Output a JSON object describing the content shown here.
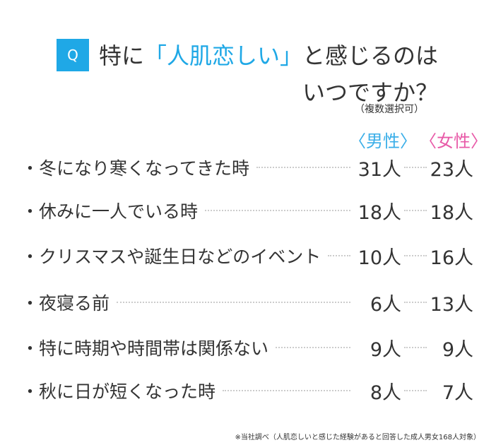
{
  "header": {
    "badge": "Q",
    "title_pre": "特に",
    "title_highlight": "「人肌恋しい」",
    "title_post": "と感じるのは",
    "title_line2": "いつですか？",
    "note": "（複数選択可）"
  },
  "table": {
    "columns": [
      "〈男性〉",
      "〈女性〉"
    ],
    "rows": [
      [
        "・冬になり寒くなってきた時",
        "31人",
        "23人"
      ],
      [
        "・休みに一人でいる時",
        "18人",
        "18人"
      ],
      [
        "・クリスマスや誕生日などのイベント",
        "10人",
        "16人"
      ],
      [
        "・夜寝る前",
        "6人",
        "13人"
      ],
      [
        "・特に時期や時間帯は関係ない",
        "9人",
        "9人"
      ],
      [
        "・秋に日が短くなった時",
        "8人",
        "7人"
      ]
    ]
  },
  "footnote": "※当社調べ（人肌恋しいと感じた経験があると回答した成人男女168人対象）"
}
